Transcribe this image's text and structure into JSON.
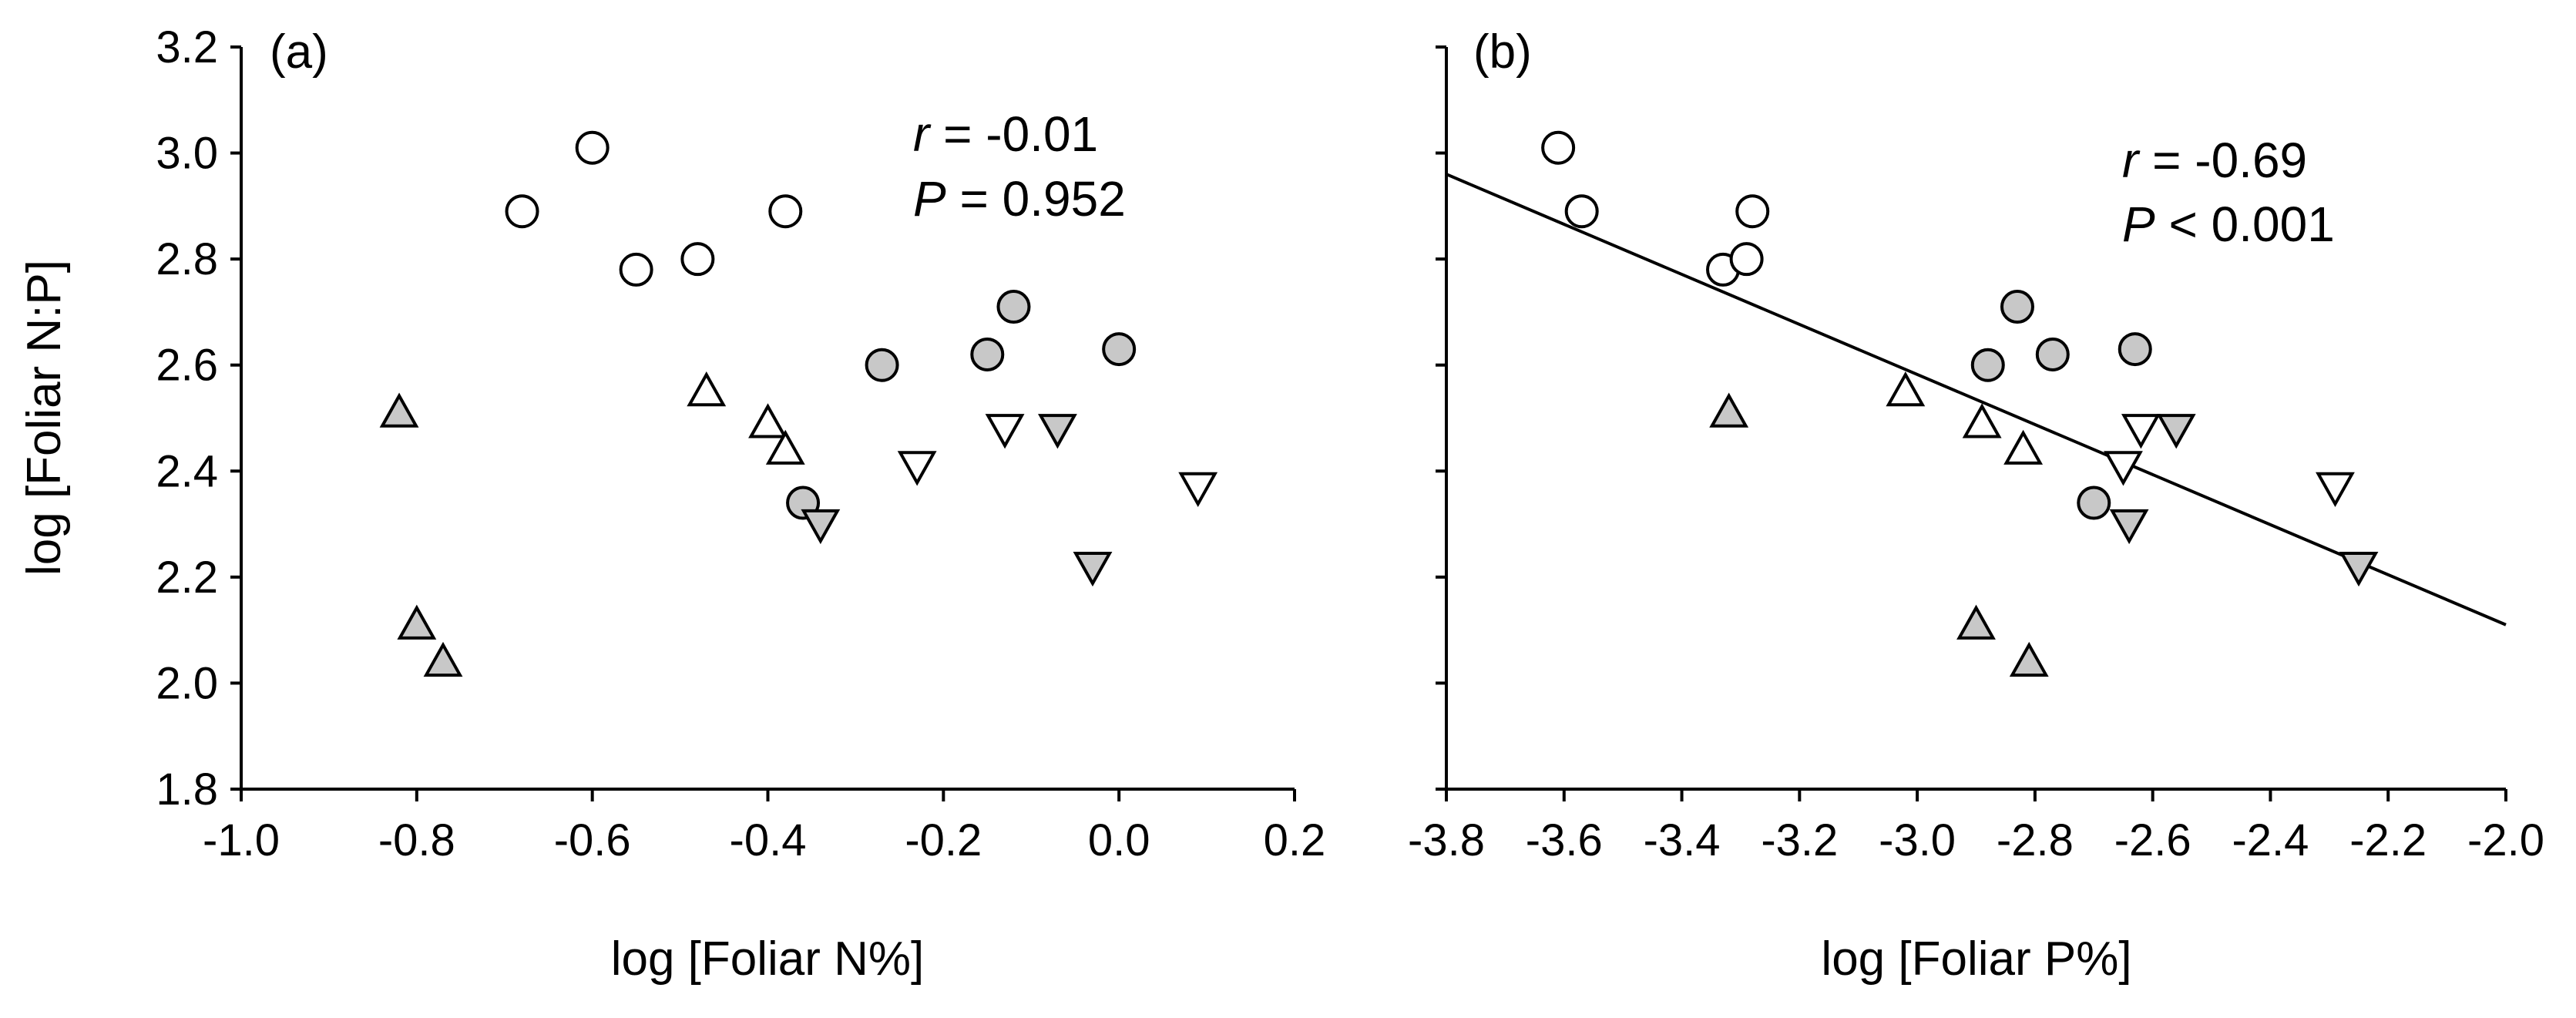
{
  "chart_data": [
    {
      "type": "scatter",
      "panel_label": "(a)",
      "xlabel": "log [Foliar N%]",
      "ylabel": "log [Foliar N:P]",
      "xlim": [
        -1.0,
        0.2
      ],
      "ylim": [
        1.8,
        3.2
      ],
      "xticks": [
        "-1.0",
        "-0.8",
        "-0.6",
        "-0.4",
        "-0.2",
        "0.0",
        "0.2"
      ],
      "yticks": [
        "1.8",
        "2.0",
        "2.2",
        "2.4",
        "2.6",
        "2.8",
        "3.0",
        "3.2"
      ],
      "stats": {
        "r_symbol": "r",
        "r_value": " = -0.01",
        "p_symbol": "P",
        "p_value": " = 0.952"
      },
      "series": [
        {
          "marker": "circle",
          "fill": "#ffffff",
          "x": [
            -0.68,
            -0.6,
            -0.55,
            -0.48,
            -0.38
          ],
          "y": [
            2.89,
            3.01,
            2.78,
            2.8,
            2.89
          ]
        },
        {
          "marker": "circle",
          "fill": "#c8c8c8",
          "x": [
            -0.36,
            -0.27,
            -0.15,
            -0.12,
            0.0
          ],
          "y": [
            2.34,
            2.6,
            2.62,
            2.71,
            2.63
          ]
        },
        {
          "marker": "triangle-up",
          "fill": "#ffffff",
          "x": [
            -0.47,
            -0.4,
            -0.38
          ],
          "y": [
            2.55,
            2.49,
            2.44
          ]
        },
        {
          "marker": "triangle-up",
          "fill": "#c8c8c8",
          "x": [
            -0.82,
            -0.8,
            -0.77
          ],
          "y": [
            2.51,
            2.11,
            2.04
          ]
        },
        {
          "marker": "triangle-down",
          "fill": "#ffffff",
          "x": [
            -0.23,
            -0.13,
            0.09
          ],
          "y": [
            2.41,
            2.48,
            2.37
          ]
        },
        {
          "marker": "triangle-down",
          "fill": "#c8c8c8",
          "x": [
            -0.34,
            -0.07,
            -0.03
          ],
          "y": [
            2.3,
            2.48,
            2.22
          ]
        }
      ]
    },
    {
      "type": "scatter",
      "panel_label": "(b)",
      "xlabel": "log [Foliar P%]",
      "ylabel": "",
      "xlim": [
        -3.8,
        -2.0
      ],
      "ylim": [
        1.8,
        3.2
      ],
      "xticks": [
        "-3.8",
        "-3.6",
        "-3.4",
        "-3.2",
        "-3.0",
        "-2.8",
        "-2.6",
        "-2.4",
        "-2.2",
        "-2.0"
      ],
      "yticks": [],
      "stats": {
        "r_symbol": "r",
        "r_value": " = -0.69",
        "p_symbol": "P",
        "p_value": " < 0.001"
      },
      "regression": {
        "x": [
          -3.8,
          -2.0
        ],
        "y": [
          2.96,
          2.11
        ]
      },
      "series": [
        {
          "marker": "circle",
          "fill": "#ffffff",
          "x": [
            -3.61,
            -3.57,
            -3.33,
            -3.29,
            -3.28
          ],
          "y": [
            3.01,
            2.89,
            2.78,
            2.8,
            2.89
          ]
        },
        {
          "marker": "circle",
          "fill": "#c8c8c8",
          "x": [
            -2.7,
            -2.88,
            -2.77,
            -2.83,
            -2.63
          ],
          "y": [
            2.34,
            2.6,
            2.62,
            2.71,
            2.63
          ]
        },
        {
          "marker": "triangle-up",
          "fill": "#ffffff",
          "x": [
            -3.02,
            -2.89,
            -2.82
          ],
          "y": [
            2.55,
            2.49,
            2.44
          ]
        },
        {
          "marker": "triangle-up",
          "fill": "#c8c8c8",
          "x": [
            -3.32,
            -2.9,
            -2.81
          ],
          "y": [
            2.51,
            2.11,
            2.04
          ]
        },
        {
          "marker": "triangle-down",
          "fill": "#ffffff",
          "x": [
            -2.65,
            -2.62,
            -2.29
          ],
          "y": [
            2.41,
            2.48,
            2.37
          ]
        },
        {
          "marker": "triangle-down",
          "fill": "#c8c8c8",
          "x": [
            -2.64,
            -2.56,
            -2.25
          ],
          "y": [
            2.3,
            2.48,
            2.22
          ]
        }
      ]
    }
  ]
}
